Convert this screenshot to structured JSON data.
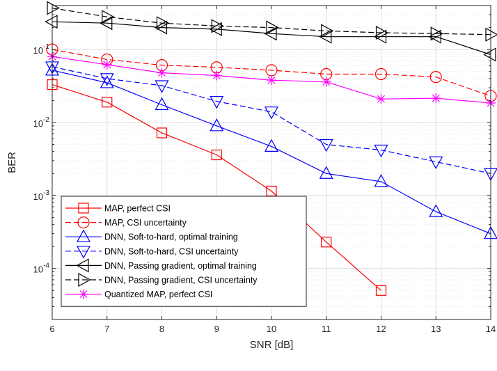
{
  "chart_data": {
    "type": "line",
    "title": "",
    "xlabel": "SNR [dB]",
    "ylabel": "BER",
    "yscale": "log",
    "xlim": [
      6,
      14
    ],
    "ylim": [
      2e-05,
      0.4
    ],
    "xticks": [
      6,
      7,
      8,
      9,
      10,
      11,
      12,
      13,
      14
    ],
    "xtick_labels": [
      "6",
      "7",
      "8",
      "9",
      "10",
      "11",
      "12",
      "13",
      "14"
    ],
    "yticks": [
      0.0001,
      0.001,
      0.01,
      0.1
    ],
    "ytick_labels": [
      {
        "base": "10",
        "exp": "-4"
      },
      {
        "base": "10",
        "exp": "-3"
      },
      {
        "base": "10",
        "exp": "-2"
      },
      {
        "base": "10",
        "exp": "-1"
      }
    ],
    "grid": true,
    "legend_position": "bottom-left",
    "series": [
      {
        "name": "MAP, perfect CSI",
        "color": "#ff0000",
        "dash": "solid",
        "marker": "square",
        "x": [
          6,
          7,
          8,
          9,
          10,
          11,
          12
        ],
        "y": [
          0.033,
          0.019,
          0.0072,
          0.0036,
          0.00115,
          0.00023,
          5e-05
        ]
      },
      {
        "name": "MAP, CSI uncertainty",
        "color": "#ff0000",
        "dash": "dashed",
        "marker": "circle",
        "x": [
          6,
          7,
          8,
          9,
          10,
          11,
          12,
          13,
          14
        ],
        "y": [
          0.1,
          0.073,
          0.061,
          0.057,
          0.052,
          0.046,
          0.046,
          0.042,
          0.023
        ]
      },
      {
        "name": "DNN, Soft-to-hard, optimal training",
        "color": "#0000ff",
        "dash": "solid",
        "marker": "triangle-up",
        "x": [
          6,
          7,
          8,
          9,
          10,
          11,
          12,
          13,
          14
        ],
        "y": [
          0.052,
          0.035,
          0.0175,
          0.009,
          0.0047,
          0.002,
          0.00155,
          0.0006,
          0.0003
        ]
      },
      {
        "name": "DNN, Soft-to-hard, CSI uncertainty",
        "color": "#0000ff",
        "dash": "dashed",
        "marker": "triangle-down",
        "x": [
          6,
          7,
          8,
          9,
          10,
          11,
          12,
          13,
          14
        ],
        "y": [
          0.058,
          0.04,
          0.032,
          0.0195,
          0.014,
          0.005,
          0.0042,
          0.0029,
          0.002
        ]
      },
      {
        "name": "DNN, Passing gradient, optimal training",
        "color": "#000000",
        "dash": "solid",
        "marker": "triangle-left",
        "x": [
          6,
          7,
          8,
          9,
          10,
          11,
          12,
          13,
          14
        ],
        "y": [
          0.24,
          0.23,
          0.2,
          0.19,
          0.165,
          0.15,
          0.15,
          0.15,
          0.085
        ]
      },
      {
        "name": "DNN, Passing gradient, CSI uncertainty",
        "color": "#000000",
        "dash": "dashed",
        "marker": "triangle-right",
        "x": [
          6,
          7,
          8,
          9,
          10,
          11,
          12,
          13,
          14
        ],
        "y": [
          0.37,
          0.28,
          0.23,
          0.21,
          0.2,
          0.18,
          0.17,
          0.165,
          0.16
        ]
      },
      {
        "name": "Quantized MAP, perfect CSI",
        "color": "#ff00ff",
        "dash": "solid",
        "marker": "asterisk",
        "x": [
          6,
          7,
          8,
          9,
          10,
          11,
          12,
          13,
          14
        ],
        "y": [
          0.08,
          0.062,
          0.048,
          0.044,
          0.038,
          0.036,
          0.021,
          0.0215,
          0.0185
        ]
      }
    ]
  }
}
